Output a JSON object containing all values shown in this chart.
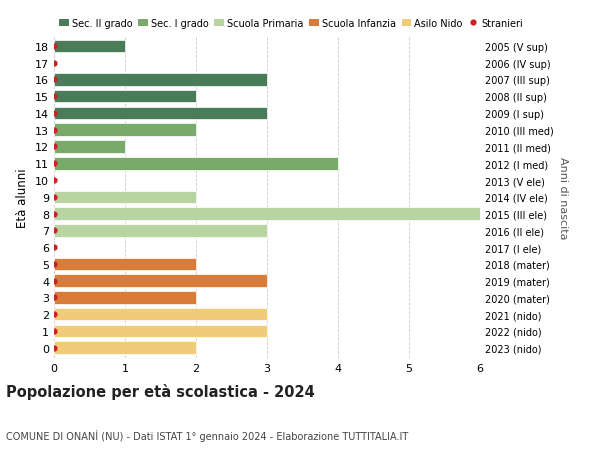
{
  "ages": [
    18,
    17,
    16,
    15,
    14,
    13,
    12,
    11,
    10,
    9,
    8,
    7,
    6,
    5,
    4,
    3,
    2,
    1,
    0
  ],
  "right_labels": [
    "2005 (V sup)",
    "2006 (IV sup)",
    "2007 (III sup)",
    "2008 (II sup)",
    "2009 (I sup)",
    "2010 (III med)",
    "2011 (II med)",
    "2012 (I med)",
    "2013 (V ele)",
    "2014 (IV ele)",
    "2015 (III ele)",
    "2016 (II ele)",
    "2017 (I ele)",
    "2018 (mater)",
    "2019 (mater)",
    "2020 (mater)",
    "2021 (nido)",
    "2022 (nido)",
    "2023 (nido)"
  ],
  "bar_values": [
    1,
    0,
    3,
    2,
    3,
    2,
    1,
    4,
    0,
    2,
    6,
    3,
    0,
    2,
    3,
    2,
    3,
    3,
    2
  ],
  "bar_colors": [
    "#4a7c59",
    "#4a7c59",
    "#4a7c59",
    "#4a7c59",
    "#4a7c59",
    "#7aaa6a",
    "#7aaa6a",
    "#7aaa6a",
    "#b8d4a0",
    "#b8d4a0",
    "#b8d4a0",
    "#b8d4a0",
    "#b8d4a0",
    "#d97c3a",
    "#d97c3a",
    "#d97c3a",
    "#f0cc78",
    "#f0cc78",
    "#f0cc78"
  ],
  "stranieri_dots": [
    18,
    17,
    16,
    15,
    14,
    13,
    12,
    11,
    10,
    9,
    8,
    7,
    6,
    5,
    4,
    3,
    2,
    1,
    0
  ],
  "legend_labels": [
    "Sec. II grado",
    "Sec. I grado",
    "Scuola Primaria",
    "Scuola Infanzia",
    "Asilo Nido",
    "Stranieri"
  ],
  "legend_colors": [
    "#4a7c59",
    "#7aaa6a",
    "#b8d4a0",
    "#d97c3a",
    "#f0cc78",
    "#cc2222"
  ],
  "title": "Popolazione per età scolastica - 2024",
  "subtitle": "COMUNE DI ONANÌ (NU) - Dati ISTAT 1° gennaio 2024 - Elaborazione TUTTITALIA.IT",
  "ylabel": "Età alunni",
  "right_ylabel": "Anni di nascita",
  "xlim": [
    0,
    6
  ],
  "xticks": [
    0,
    1,
    2,
    3,
    4,
    5,
    6
  ],
  "grid_color": "#cccccc",
  "bar_height": 0.75
}
